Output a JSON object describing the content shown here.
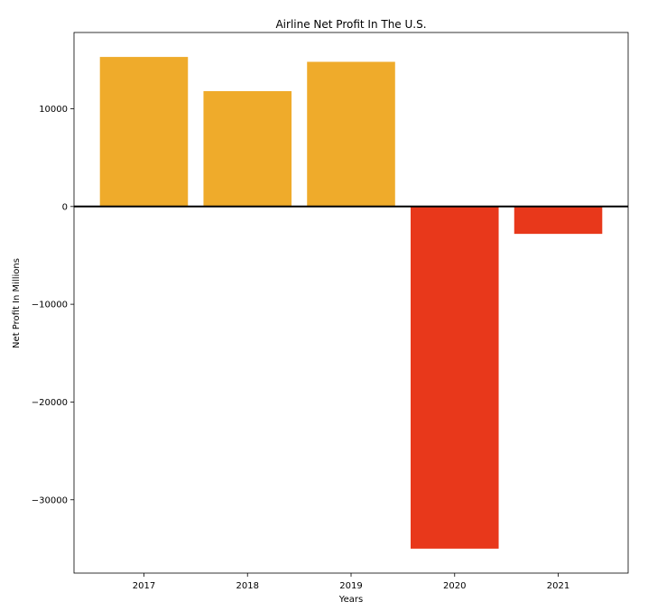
{
  "chart_data": {
    "type": "bar",
    "title": "Airline Net Profit In The U.S.",
    "xlabel": "Years",
    "ylabel": "Net Profit In Millions",
    "categories": [
      "2017",
      "2018",
      "2019",
      "2020",
      "2021"
    ],
    "values": [
      15300,
      11800,
      14800,
      -35000,
      -2800
    ],
    "ylim": [
      -37500,
      17800
    ],
    "yticks": [
      10000,
      0,
      -10000,
      -20000,
      -30000
    ],
    "ytick_labels": [
      "10000",
      "0",
      "−10000",
      "−20000",
      "−30000"
    ],
    "grid": false,
    "colors": {
      "positive": "#efab2b",
      "negative": "#e8381b",
      "zero_line": "#000000"
    }
  }
}
